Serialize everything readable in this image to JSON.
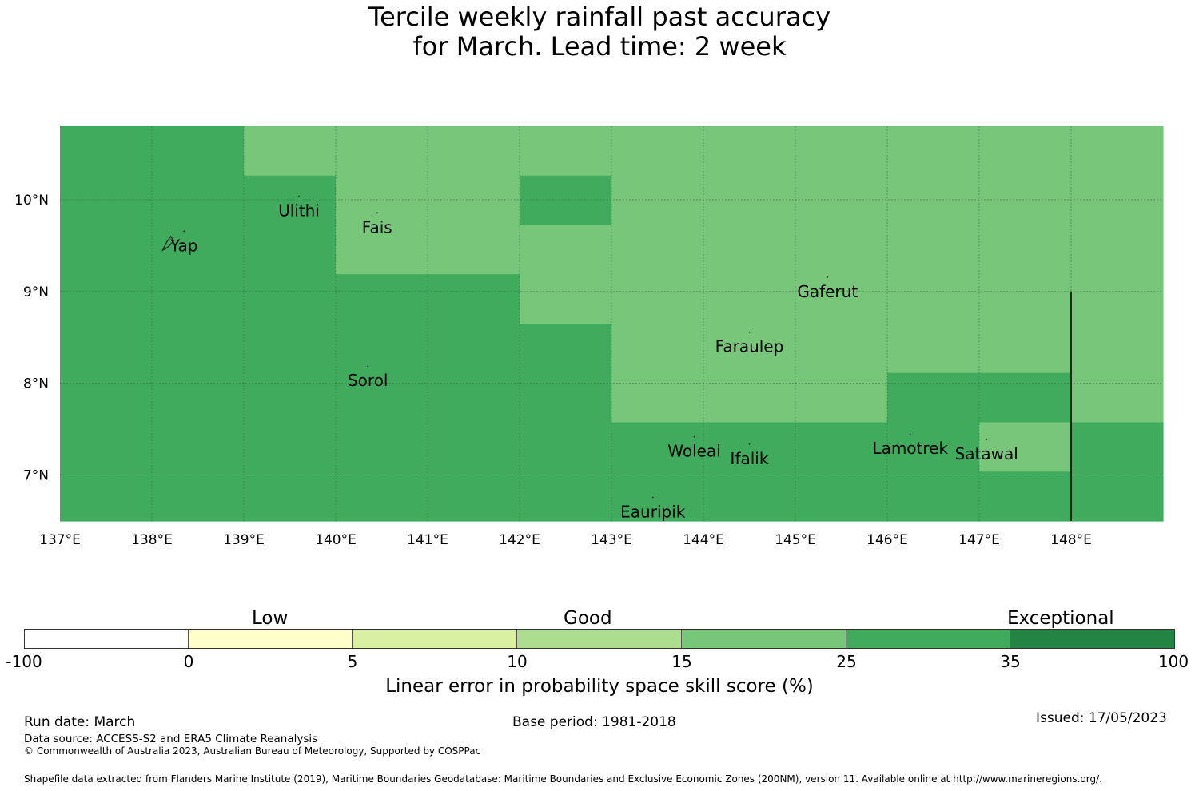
{
  "title_line1": "Tercile weekly rainfall past accuracy",
  "title_line2": "for March. Lead time: 2 week",
  "map": {
    "lon_range": [
      137.0,
      149.0
    ],
    "lat_range": [
      6.5,
      10.8
    ],
    "x_ticks": [
      "137°E",
      "138°E",
      "139°E",
      "140°E",
      "141°E",
      "142°E",
      "143°E",
      "144°E",
      "145°E",
      "146°E",
      "147°E",
      "148°E"
    ],
    "y_ticks": [
      "10°N",
      "9°N",
      "8°N",
      "7°N"
    ],
    "colors": {
      "category_25_35": "#41ab5d",
      "category_15_25": "#78c679",
      "gridline": "#2a5a36"
    },
    "category_grid": [
      [
        "25-35",
        "25-35",
        "15-25",
        "15-25",
        "15-25",
        "15-25",
        "15-25",
        "15-25",
        "15-25",
        "15-25",
        "15-25",
        "15-25"
      ],
      [
        "25-35",
        "25-35",
        "25-35",
        "15-25",
        "15-25",
        "25-35",
        "15-25",
        "15-25",
        "15-25",
        "15-25",
        "15-25",
        "15-25"
      ],
      [
        "25-35",
        "25-35",
        "25-35",
        "15-25",
        "15-25",
        "15-25",
        "15-25",
        "15-25",
        "15-25",
        "15-25",
        "15-25",
        "15-25"
      ],
      [
        "25-35",
        "25-35",
        "25-35",
        "25-35",
        "25-35",
        "15-25",
        "15-25",
        "15-25",
        "15-25",
        "15-25",
        "15-25",
        "15-25"
      ],
      [
        "25-35",
        "25-35",
        "25-35",
        "25-35",
        "25-35",
        "25-35",
        "15-25",
        "15-25",
        "15-25",
        "15-25",
        "15-25",
        "15-25"
      ],
      [
        "25-35",
        "25-35",
        "25-35",
        "25-35",
        "25-35",
        "25-35",
        "15-25",
        "15-25",
        "15-25",
        "25-35",
        "25-35",
        "15-25"
      ],
      [
        "25-35",
        "25-35",
        "25-35",
        "25-35",
        "25-35",
        "25-35",
        "25-35",
        "25-35",
        "25-35",
        "25-35",
        "15-25",
        "25-35"
      ],
      [
        "25-35",
        "25-35",
        "25-35",
        "25-35",
        "25-35",
        "25-35",
        "25-35",
        "25-35",
        "25-35",
        "25-35",
        "25-35",
        "25-35"
      ]
    ],
    "places": [
      {
        "name": "Yap",
        "lon": 138.35,
        "lat": 9.5
      },
      {
        "name": "Ulithi",
        "lon": 139.6,
        "lat": 9.88
      },
      {
        "name": "Fais",
        "lon": 140.45,
        "lat": 9.7
      },
      {
        "name": "Gaferut",
        "lon": 145.35,
        "lat": 9.0
      },
      {
        "name": "Faraulep",
        "lon": 144.5,
        "lat": 8.4
      },
      {
        "name": "Sorol",
        "lon": 140.35,
        "lat": 8.03
      },
      {
        "name": "Woleai",
        "lon": 143.9,
        "lat": 7.26
      },
      {
        "name": "Ifalik",
        "lon": 144.5,
        "lat": 7.18
      },
      {
        "name": "Lamotrek",
        "lon": 146.25,
        "lat": 7.29
      },
      {
        "name": "Satawal",
        "lon": 147.08,
        "lat": 7.23
      },
      {
        "name": "Eauripik",
        "lon": 143.45,
        "lat": 6.6
      }
    ]
  },
  "colorbar": {
    "category_labels": [
      "Low",
      "Good",
      "Exceptional"
    ],
    "ticks": [
      "-100",
      "0",
      "5",
      "10",
      "15",
      "25",
      "35",
      "100"
    ],
    "colors": [
      "#ffffff",
      "#ffffcc",
      "#d9f0a3",
      "#addd8e",
      "#78c679",
      "#41ab5d",
      "#238443"
    ],
    "label": "Linear error in probability space skill score (%)"
  },
  "footer": {
    "run_date": "Run date: March",
    "base_period": "Base period: 1981-2018",
    "issued": "Issued: 17/05/2023",
    "data_source": "Data source: ACCESS-S2 and ERA5 Climate Reanalysis",
    "copyright": "© Commonwealth of Australia 2023, Australian Bureau of Meteorology, Supported by COSPPac",
    "shapefile": "Shapefile data extracted from Flanders Marine Institute (2019), Maritime Boundaries Geodatabase: Maritime Boundaries and Exclusive Economic Zones (200NM), version 11. Available online at http://www.marineregions.org/."
  }
}
